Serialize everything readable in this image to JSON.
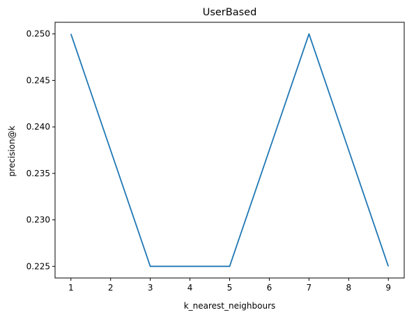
{
  "chart_data": {
    "type": "line",
    "title": "UserBased",
    "xlabel": "k_nearest_neighbours",
    "ylabel": "precision@k",
    "x": [
      1,
      2,
      3,
      4,
      5,
      6,
      7,
      8,
      9
    ],
    "series": [
      {
        "values": [
          0.25,
          0.2375,
          0.225,
          0.225,
          0.225,
          0.2375,
          0.25,
          0.2375,
          0.225
        ],
        "color": "#1f77b4"
      }
    ],
    "xlim": [
      0.6,
      9.4
    ],
    "ylim": [
      0.22375,
      0.25125
    ],
    "xticks": [
      "1",
      "2",
      "3",
      "4",
      "5",
      "6",
      "7",
      "8",
      "9"
    ],
    "yticks": [
      "0.225",
      "0.230",
      "0.235",
      "0.240",
      "0.245",
      "0.250"
    ],
    "grid": false,
    "legend": "none"
  }
}
